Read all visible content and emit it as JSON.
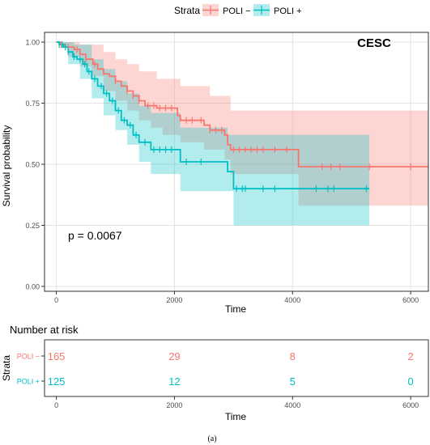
{
  "chart_data": {
    "type": "line",
    "legend": {
      "title": "Strata",
      "placement": "top",
      "entries": [
        "POLI −",
        "POLI +"
      ]
    },
    "panel_label": "CESC",
    "p_value_text": "p = 0.0067",
    "xlabel": "Time",
    "ylabel": "Survival probability",
    "xlim": [
      -200,
      6300
    ],
    "ylim": [
      -0.02,
      1.04
    ],
    "x_ticks": [
      0,
      2000,
      4000,
      6000
    ],
    "x_tick_labels": [
      "0",
      "2000",
      "4000",
      "6000"
    ],
    "y_ticks": [
      0,
      0.25,
      0.5,
      0.75,
      1.0
    ],
    "y_tick_labels": [
      "0.00",
      "0.25",
      "0.50",
      "0.75",
      "1.00"
    ],
    "grid": true,
    "series": [
      {
        "name": "POLI −",
        "color": "#F8766D",
        "fill": "#F8766D",
        "steps": [
          [
            0,
            1.0
          ],
          [
            60,
            0.99
          ],
          [
            150,
            0.98
          ],
          [
            300,
            0.97
          ],
          [
            400,
            0.95
          ],
          [
            500,
            0.93
          ],
          [
            620,
            0.91
          ],
          [
            700,
            0.89
          ],
          [
            800,
            0.87
          ],
          [
            900,
            0.86
          ],
          [
            1000,
            0.84
          ],
          [
            1100,
            0.82
          ],
          [
            1200,
            0.8
          ],
          [
            1300,
            0.78
          ],
          [
            1400,
            0.76
          ],
          [
            1500,
            0.74
          ],
          [
            1700,
            0.73
          ],
          [
            2050,
            0.7
          ],
          [
            2100,
            0.68
          ],
          [
            2500,
            0.66
          ],
          [
            2600,
            0.64
          ],
          [
            2850,
            0.62
          ],
          [
            2900,
            0.58
          ],
          [
            2950,
            0.56
          ],
          [
            4100,
            0.49
          ],
          [
            6300,
            0.49
          ]
        ],
        "lower": [
          [
            0,
            0.98
          ],
          [
            200,
            0.94
          ],
          [
            400,
            0.9
          ],
          [
            600,
            0.86
          ],
          [
            800,
            0.8
          ],
          [
            1000,
            0.76
          ],
          [
            1200,
            0.72
          ],
          [
            1400,
            0.68
          ],
          [
            1600,
            0.65
          ],
          [
            1800,
            0.62
          ],
          [
            2100,
            0.59
          ],
          [
            2500,
            0.56
          ],
          [
            2850,
            0.52
          ],
          [
            2950,
            0.46
          ],
          [
            4100,
            0.33
          ],
          [
            6300,
            0.33
          ]
        ],
        "upper": [
          [
            0,
            1.0
          ],
          [
            400,
            0.99
          ],
          [
            800,
            0.96
          ],
          [
            1000,
            0.93
          ],
          [
            1200,
            0.91
          ],
          [
            1400,
            0.88
          ],
          [
            1700,
            0.85
          ],
          [
            2100,
            0.82
          ],
          [
            2600,
            0.78
          ],
          [
            2950,
            0.72
          ],
          [
            4100,
            0.72
          ],
          [
            6300,
            0.72
          ]
        ],
        "censor_x": [
          80,
          200,
          350,
          500,
          650,
          1000,
          1200,
          1300,
          1400,
          1550,
          1650,
          1750,
          1850,
          1950,
          2200,
          2300,
          2450,
          2600,
          2700,
          2800,
          3000,
          3100,
          3200,
          3300,
          3400,
          3500,
          3700,
          3900,
          4500,
          4650,
          4800,
          5300,
          6000
        ]
      },
      {
        "name": "POLI +",
        "color": "#00BFC4",
        "fill": "#00BFC4",
        "steps": [
          [
            0,
            1.0
          ],
          [
            50,
            0.99
          ],
          [
            120,
            0.98
          ],
          [
            200,
            0.96
          ],
          [
            280,
            0.94
          ],
          [
            350,
            0.93
          ],
          [
            450,
            0.91
          ],
          [
            520,
            0.88
          ],
          [
            600,
            0.85
          ],
          [
            700,
            0.82
          ],
          [
            800,
            0.79
          ],
          [
            900,
            0.76
          ],
          [
            1000,
            0.72
          ],
          [
            1100,
            0.68
          ],
          [
            1200,
            0.66
          ],
          [
            1300,
            0.62
          ],
          [
            1400,
            0.59
          ],
          [
            1600,
            0.56
          ],
          [
            2100,
            0.51
          ],
          [
            2900,
            0.47
          ],
          [
            3000,
            0.4
          ],
          [
            5300,
            0.4
          ]
        ],
        "lower": [
          [
            0,
            0.97
          ],
          [
            200,
            0.91
          ],
          [
            400,
            0.85
          ],
          [
            600,
            0.77
          ],
          [
            800,
            0.7
          ],
          [
            1000,
            0.64
          ],
          [
            1200,
            0.58
          ],
          [
            1400,
            0.51
          ],
          [
            1600,
            0.46
          ],
          [
            2100,
            0.39
          ],
          [
            3000,
            0.25
          ],
          [
            5300,
            0.25
          ]
        ],
        "upper": [
          [
            0,
            1.0
          ],
          [
            300,
            0.99
          ],
          [
            600,
            0.93
          ],
          [
            800,
            0.89
          ],
          [
            1000,
            0.84
          ],
          [
            1200,
            0.79
          ],
          [
            1400,
            0.74
          ],
          [
            1600,
            0.71
          ],
          [
            2100,
            0.65
          ],
          [
            2900,
            0.62
          ],
          [
            3000,
            0.62
          ],
          [
            5300,
            0.62
          ]
        ],
        "censor_x": [
          50,
          100,
          150,
          200,
          300,
          400,
          480,
          550,
          650,
          760,
          850,
          950,
          1050,
          1150,
          1250,
          1350,
          1500,
          1650,
          1750,
          1850,
          1950,
          2200,
          2450,
          3050,
          3150,
          3200,
          3500,
          3700,
          4400,
          4600,
          4700,
          5250
        ]
      }
    ],
    "risk_table": {
      "title": "Number at risk",
      "ylabel": "Strata",
      "xlabel": "Time",
      "times": [
        0,
        2000,
        4000,
        6000
      ],
      "time_labels": [
        "0",
        "2000",
        "4000",
        "6000"
      ],
      "rows": [
        {
          "label": "POLI −",
          "color": "#F8766D",
          "counts": [
            "165",
            "29",
            "8",
            "2"
          ]
        },
        {
          "label": "POLI +",
          "color": "#00BFC4",
          "counts": [
            "125",
            "12",
            "5",
            "0"
          ]
        }
      ]
    },
    "caption": "(a)"
  }
}
